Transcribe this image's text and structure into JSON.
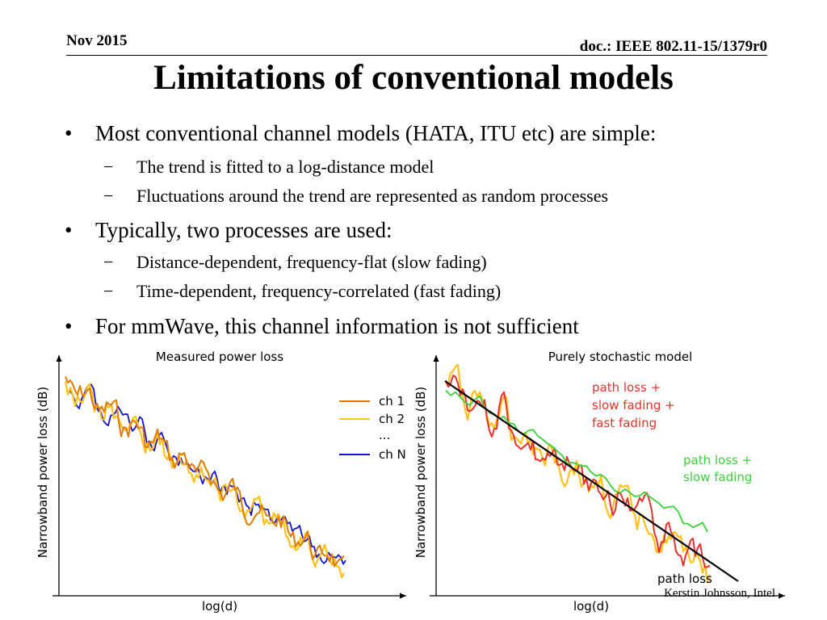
{
  "header": {
    "date": "Nov 2015",
    "doc": "doc.: IEEE 802.11-15/1379r0"
  },
  "title": "Limitations of conventional models",
  "bullets": [
    {
      "text": "Most conventional channel models (HATA, ITU etc) are simple:",
      "sub": [
        "The trend is fitted to a log-distance model",
        "Fluctuations around the trend are represented as random processes"
      ]
    },
    {
      "text": "Typically, two processes are used:",
      "sub": [
        "Distance-dependent, frequency-flat (slow fading)",
        "Time-dependent, frequency-correlated (fast fading)"
      ]
    },
    {
      "text": "For mmWave, this channel information is not sufficient",
      "sub": []
    }
  ],
  "bullet_symbol": "•",
  "sub_symbol": "−",
  "colors": {
    "orange": "#e07b00",
    "yellow": "#ffc21a",
    "blue": "#1414c8",
    "red": "#e8322d",
    "green": "#3bd13b",
    "black": "#000000"
  },
  "chart_data": [
    {
      "type": "line",
      "title": "Measured power loss",
      "xlabel": "log(d)",
      "ylabel": "Narrowband power loss (dB)",
      "legend": [
        "ch 1",
        "ch 2",
        "...",
        "ch N"
      ],
      "legend_position": "top-right",
      "series": [
        {
          "name": "ch 1",
          "color": "orange"
        },
        {
          "name": "ch 2",
          "color": "yellow"
        },
        {
          "name": "ch N",
          "color": "blue"
        }
      ]
    },
    {
      "type": "line",
      "title": "Purely stochastic model",
      "xlabel": "log(d)",
      "ylabel": "Narrowband power loss (dB)",
      "annotations": [
        {
          "lines": [
            "path loss +",
            "slow fading +",
            "fast fading"
          ],
          "color": "red"
        },
        {
          "lines": [
            "path loss +",
            "slow fading"
          ],
          "color": "green"
        },
        {
          "lines": [
            "path loss"
          ],
          "color": "black"
        }
      ],
      "series": [
        {
          "name": "path loss",
          "color": "black"
        },
        {
          "name": "path loss + slow fading",
          "color": "green"
        },
        {
          "name": "path loss + slow fading + fast fading",
          "color": "red"
        }
      ]
    }
  ],
  "footer": "Kerstin Johnsson, Intel"
}
